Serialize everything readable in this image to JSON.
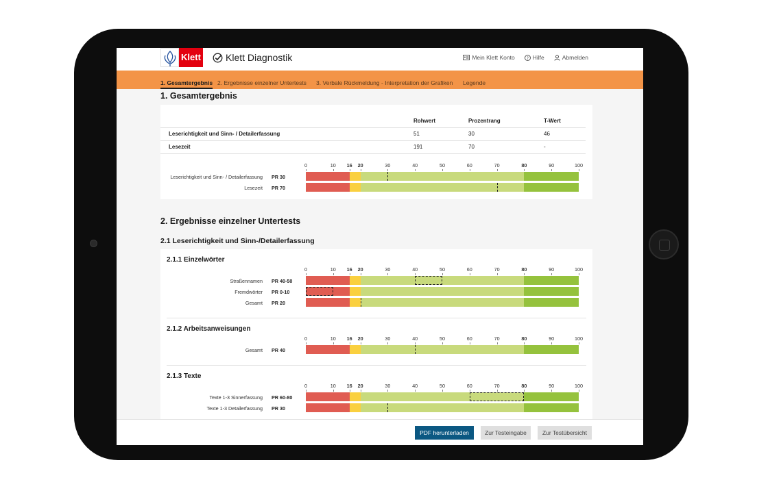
{
  "header": {
    "logo_text": "Klett",
    "brand": "Klett Diagnostik",
    "links": [
      {
        "label": "Mein Klett Konto",
        "icon": "id-card-icon"
      },
      {
        "label": "Hilfe",
        "icon": "help-icon"
      },
      {
        "label": "Abmelden",
        "icon": "user-icon"
      }
    ]
  },
  "tabs": [
    {
      "label": "1. Gesamtergebnis",
      "active": true
    },
    {
      "label": "2. Ergebnisse einzelner Untertests"
    },
    {
      "label": "3. Verbale Rückmeldung - Interpretation der Grafiken"
    },
    {
      "label": "Legende"
    }
  ],
  "colors": {
    "red": "#e05c52",
    "yellow": "#fad03f",
    "lightgreen": "#c8da7c",
    "green": "#95c23d",
    "orange": "#f39447",
    "primary": "#0b5882"
  },
  "scale": {
    "ticks": [
      0,
      10,
      16,
      20,
      30,
      40,
      50,
      60,
      70,
      80,
      90,
      100
    ],
    "bold_ticks": [
      16,
      20,
      80
    ],
    "zones": [
      16,
      20,
      80
    ]
  },
  "section1": {
    "title": "1. Gesamtergebnis",
    "table": {
      "headers": [
        "",
        "Rohwert",
        "Prozentrang",
        "T-Wert"
      ],
      "rows": [
        [
          "Leserichtigkeit und Sinn- / Detailerfassung",
          "51",
          "30",
          "46"
        ],
        [
          "Lesezeit",
          "191",
          "70",
          "-"
        ]
      ]
    },
    "chart": [
      {
        "label": "Leserichtigkeit und Sinn- / Detailerfassung",
        "pr": "PR 30",
        "value": 30
      },
      {
        "label": "Lesezeit",
        "pr": "PR 70",
        "value": 70
      }
    ]
  },
  "section2": {
    "title": "2. Ergebnisse einzelner Untertests",
    "sub": "2.1 Leserichtigkeit und Sinn-/Detailerfassung",
    "groups": [
      {
        "title": "2.1.1 Einzelwörter",
        "rows": [
          {
            "label": "Straßennamen",
            "pr": "PR 40-50",
            "range": [
              40,
              50
            ]
          },
          {
            "label": "Fremdwörter",
            "pr": "PR 0-10",
            "range": [
              0,
              10
            ]
          },
          {
            "label": "Gesamt",
            "pr": "PR 20",
            "value": 20
          }
        ]
      },
      {
        "title": "2.1.2 Arbeitsanweisungen",
        "rows": [
          {
            "label": "Gesamt",
            "pr": "PR 40",
            "value": 40
          }
        ]
      },
      {
        "title": "2.1.3 Texte",
        "rows": [
          {
            "label": "Texte 1-3 Sinnerfassung",
            "pr": "PR 60-80",
            "range": [
              60,
              80
            ]
          },
          {
            "label": "Texte 1-3 Detailerfassung",
            "pr": "PR 30",
            "value": 30
          }
        ]
      }
    ]
  },
  "footer": {
    "pdf": "PDF herunterladen",
    "input": "Zur Testeingabe",
    "overview": "Zur Testübersicht"
  }
}
